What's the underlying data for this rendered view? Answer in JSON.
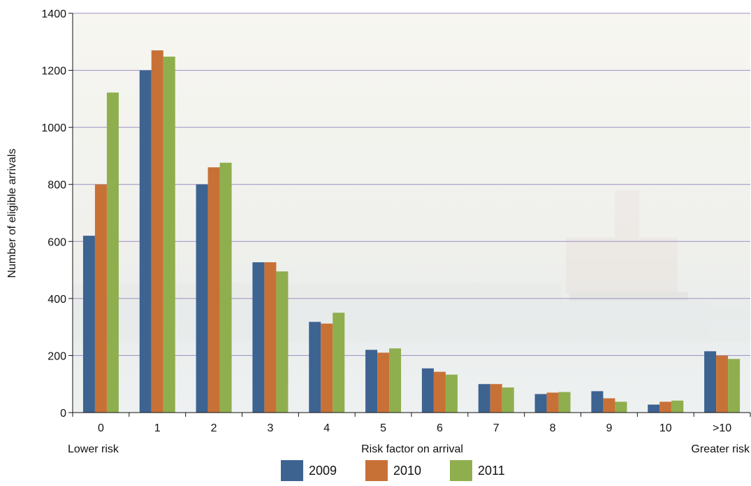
{
  "chart_data": {
    "type": "bar",
    "title": "",
    "xlabel": "Risk factor on arrival",
    "ylabel": "Number of eligible arrivals",
    "x_left_note": "Lower risk",
    "x_right_note": "Greater risk",
    "ylim": [
      0,
      1400
    ],
    "yticks": [
      "0",
      "200",
      "400",
      "600",
      "800",
      "1000",
      "1200",
      "1400"
    ],
    "categories": [
      "0",
      "1",
      "2",
      "3",
      "4",
      "5",
      "6",
      "7",
      "8",
      "9",
      "10",
      ">10"
    ],
    "grid": true,
    "legend_position": "bottom",
    "series": [
      {
        "name": "2009",
        "color": "#3d6391",
        "values": [
          620,
          1200,
          800,
          527,
          318,
          220,
          155,
          100,
          65,
          75,
          28,
          215
        ]
      },
      {
        "name": "2010",
        "color": "#c87137",
        "values": [
          800,
          1270,
          860,
          527,
          312,
          210,
          143,
          100,
          70,
          50,
          38,
          200
        ]
      },
      {
        "name": "2011",
        "color": "#8fae4e",
        "values": [
          1122,
          1248,
          876,
          495,
          350,
          225,
          133,
          88,
          72,
          38,
          42,
          188
        ]
      }
    ]
  }
}
